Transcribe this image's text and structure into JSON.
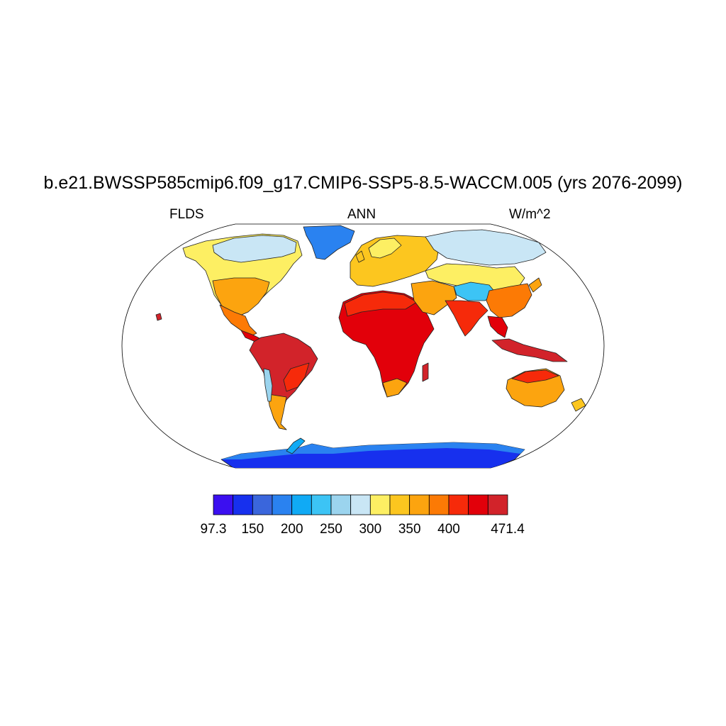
{
  "title": "b.e21.BWSSP585cmip6.f09_g17.CMIP6-SSP5-8.5-WACCM.005 (yrs 2076-2099)",
  "variable": "FLDS",
  "season": "ANN",
  "units": "W/m^2",
  "colorbar": {
    "colors": [
      "#3b0ff0",
      "#1730ee",
      "#3a66dc",
      "#2a82f0",
      "#10aaf5",
      "#3cc4f5",
      "#9bd4ee",
      "#c9e6f5",
      "#fdef63",
      "#fcc61f",
      "#fca40f",
      "#fc7a05",
      "#f62a0a",
      "#e2000a",
      "#d2232a"
    ],
    "tick_labels": [
      "97.3",
      "150",
      "200",
      "250",
      "300",
      "350",
      "400",
      "471.4"
    ]
  },
  "map": {
    "projection": "Robinson",
    "ocean_color": "#ffffff",
    "regions": [
      {
        "name": "Greenland",
        "value_class": 4
      },
      {
        "name": "Antarctica",
        "value_class": 0
      },
      {
        "name": "Arctic North America",
        "value_class": 7
      },
      {
        "name": "North America",
        "value_class": 9
      },
      {
        "name": "Central America",
        "value_class": 13
      },
      {
        "name": "South America",
        "value_class": 13
      },
      {
        "name": "Africa",
        "value_class": 13
      },
      {
        "name": "Europe",
        "value_class": 9
      },
      {
        "name": "Siberia",
        "value_class": 7
      },
      {
        "name": "Tibetan Plateau",
        "value_class": 5
      },
      {
        "name": "South Asia",
        "value_class": 12
      },
      {
        "name": "Southeast Asia",
        "value_class": 13
      },
      {
        "name": "Australia",
        "value_class": 11
      }
    ]
  }
}
